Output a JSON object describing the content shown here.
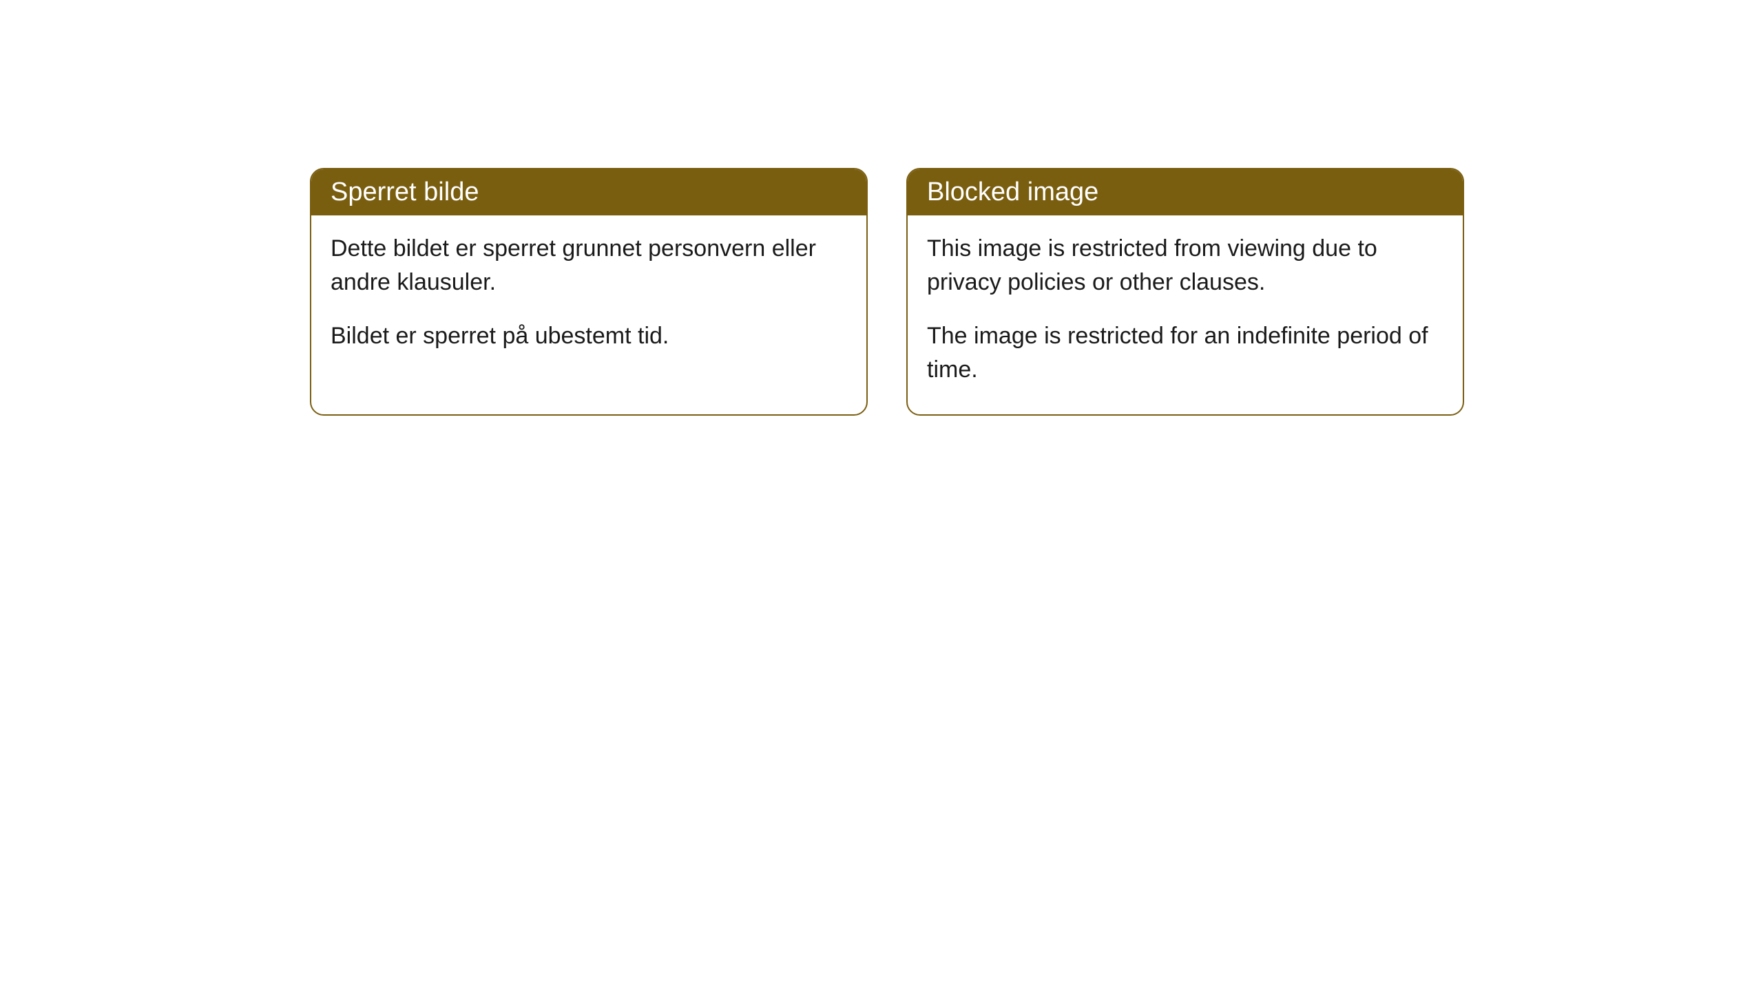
{
  "cards": [
    {
      "title": "Sperret bilde",
      "paragraph1": "Dette bildet er sperret grunnet personvern eller andre klausuler.",
      "paragraph2": "Bildet er sperret på ubestemt tid."
    },
    {
      "title": "Blocked image",
      "paragraph1": "This image is restricted from viewing due to privacy policies or other clauses.",
      "paragraph2": "The image is restricted for an indefinite period of time."
    }
  ],
  "styling": {
    "header_background": "#7a5e10",
    "header_text_color": "#ffffff",
    "border_color": "#7a5e10",
    "body_background": "#ffffff",
    "body_text_color": "#1a1a1a",
    "border_radius": 20,
    "title_fontsize": 38,
    "body_fontsize": 34
  }
}
